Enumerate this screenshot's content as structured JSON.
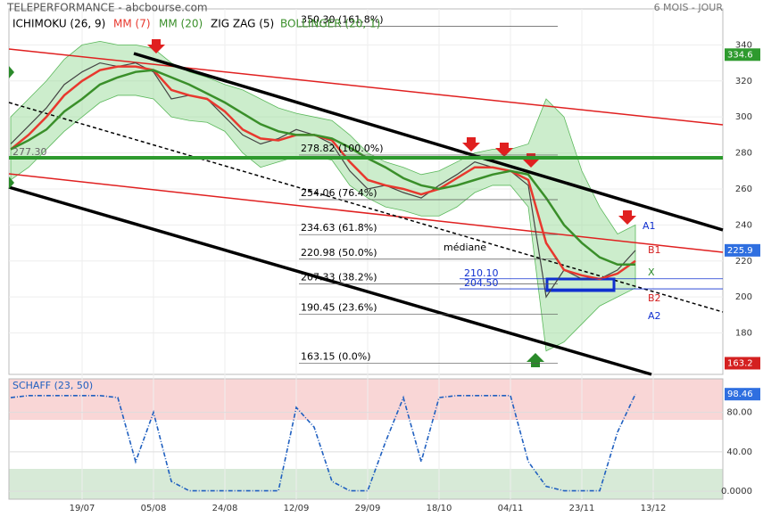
{
  "header": {
    "title": "TELEPERFORMANCE - abcbourse.com",
    "period": "6 MOIS - JOUR"
  },
  "chart_data": [
    {
      "type": "line",
      "categories": [
        null,
        null,
        null,
        null,
        "19/07",
        null,
        null,
        null,
        "05/08",
        null,
        null,
        null,
        "24/08",
        null,
        null,
        null,
        "12/09",
        null,
        null,
        null,
        "29/09",
        null,
        null,
        null,
        "18/10",
        null,
        null,
        null,
        "04/11",
        null,
        null,
        null,
        "23/11",
        null,
        null,
        null,
        "13/12",
        null,
        null,
        null,
        null
      ],
      "ylim": [
        157,
        360
      ],
      "yticks": [
        180,
        200,
        220,
        240,
        260,
        280,
        300,
        320,
        340
      ],
      "other_indicators": [
        "ICHIMOKU (26, 9)",
        "ZIG ZAG (5)"
      ],
      "series": [
        {
          "color": "#444444",
          "values": [
            285,
            295,
            305,
            318,
            325,
            330,
            328,
            330,
            325,
            310,
            312,
            310,
            300,
            290,
            285,
            288,
            293,
            290,
            285,
            270,
            260,
            262,
            258,
            255,
            262,
            268,
            275,
            272,
            270,
            262,
            200,
            215,
            210,
            210,
            215,
            225.9,
            null,
            null,
            null,
            null,
            null
          ]
        },
        {
          "name": "BOLLINGER (20, 1)",
          "type": "band",
          "color": "#8fd68f",
          "values": [
            300,
            310,
            320,
            332,
            340,
            342,
            340,
            340,
            338,
            330,
            325,
            322,
            318,
            315,
            310,
            305,
            302,
            300,
            298,
            290,
            280,
            275,
            272,
            268,
            270,
            275,
            280,
            282,
            282,
            285,
            310,
            300,
            270,
            250,
            235,
            240,
            null,
            null,
            null,
            null,
            null
          ],
          "lower": [
            265,
            272,
            282,
            292,
            300,
            308,
            312,
            312,
            310,
            300,
            298,
            297,
            292,
            280,
            272,
            275,
            278,
            278,
            276,
            262,
            255,
            250,
            248,
            245,
            245,
            250,
            258,
            262,
            262,
            250,
            170,
            175,
            185,
            195,
            200,
            205,
            null,
            null,
            null,
            null,
            null
          ]
        },
        {
          "name": "MM (7)",
          "color": "#e8382e",
          "values": [
            282,
            290,
            300,
            312,
            320,
            326,
            328,
            328,
            326,
            315,
            312,
            310,
            303,
            293,
            288,
            287,
            290,
            290,
            287,
            275,
            265,
            262,
            260,
            257,
            260,
            266,
            272,
            272,
            270,
            265,
            230,
            215,
            212,
            210,
            213,
            220,
            null,
            null,
            null,
            null,
            null
          ]
        },
        {
          "name": "MM (20)",
          "color": "#3a8f2a",
          "values": [
            282,
            287,
            293,
            303,
            310,
            318,
            322,
            325,
            326,
            322,
            318,
            313,
            308,
            302,
            296,
            292,
            290,
            290,
            288,
            283,
            277,
            272,
            266,
            262,
            260,
            262,
            265,
            268,
            270,
            268,
            255,
            240,
            230,
            222,
            218,
            218,
            null,
            null,
            null,
            null,
            null
          ]
        }
      ],
      "fibonacci": [
        {
          "value": 350.3,
          "label": "350.30 (161.8%)"
        },
        {
          "value": 278.82,
          "label": "278.82 (100.0%)"
        },
        {
          "value": 254.06,
          "label": "254.06 (76.4%)"
        },
        {
          "value": 234.63,
          "label": "234.63 (61.8%)"
        },
        {
          "value": 220.98,
          "label": "220.98 (50.0%)"
        },
        {
          "value": 207.33,
          "label": "207.33 (38.2%)"
        },
        {
          "value": 190.45,
          "label": "190.45 (23.6%)"
        },
        {
          "value": 163.15,
          "label": "163.15 (0.0%)"
        }
      ],
      "support": {
        "value": 277.3,
        "label": "277.30",
        "color": "#2e9a2e"
      },
      "levels": [
        {
          "value": 210.1,
          "label": "210.10"
        },
        {
          "value": 204.5,
          "label": "204.50"
        }
      ],
      "annotations": [
        "médiane",
        "A1",
        "B1",
        "X",
        "B2",
        "A2"
      ],
      "last_values": [
        {
          "value": 334.6,
          "color": "#2e9a2e"
        },
        {
          "value": 225.9,
          "color": "#2f6fe0"
        },
        {
          "value": 163.2,
          "color": "#d42020"
        }
      ]
    },
    {
      "type": "line",
      "title": "SCHAFF (23, 50)",
      "color": "#2060c0",
      "ylim": [
        -8,
        114
      ],
      "yticks": [
        {
          "value": 0,
          "label": "0.0000"
        },
        {
          "value": 40,
          "label": "40.00"
        },
        {
          "value": 80,
          "label": "80.00"
        }
      ],
      "values": [
        95,
        97,
        97,
        97,
        97,
        97,
        95,
        30,
        80,
        10,
        0.5,
        0.5,
        0.5,
        0.5,
        0.5,
        0.5,
        85,
        65,
        10,
        0.5,
        0.5,
        50,
        95,
        30,
        95,
        97,
        97,
        97,
        97,
        30,
        5,
        0.5,
        0.5,
        0.5,
        60,
        98.46,
        null,
        null,
        null,
        null,
        null
      ],
      "last_value": 98.46
    }
  ]
}
